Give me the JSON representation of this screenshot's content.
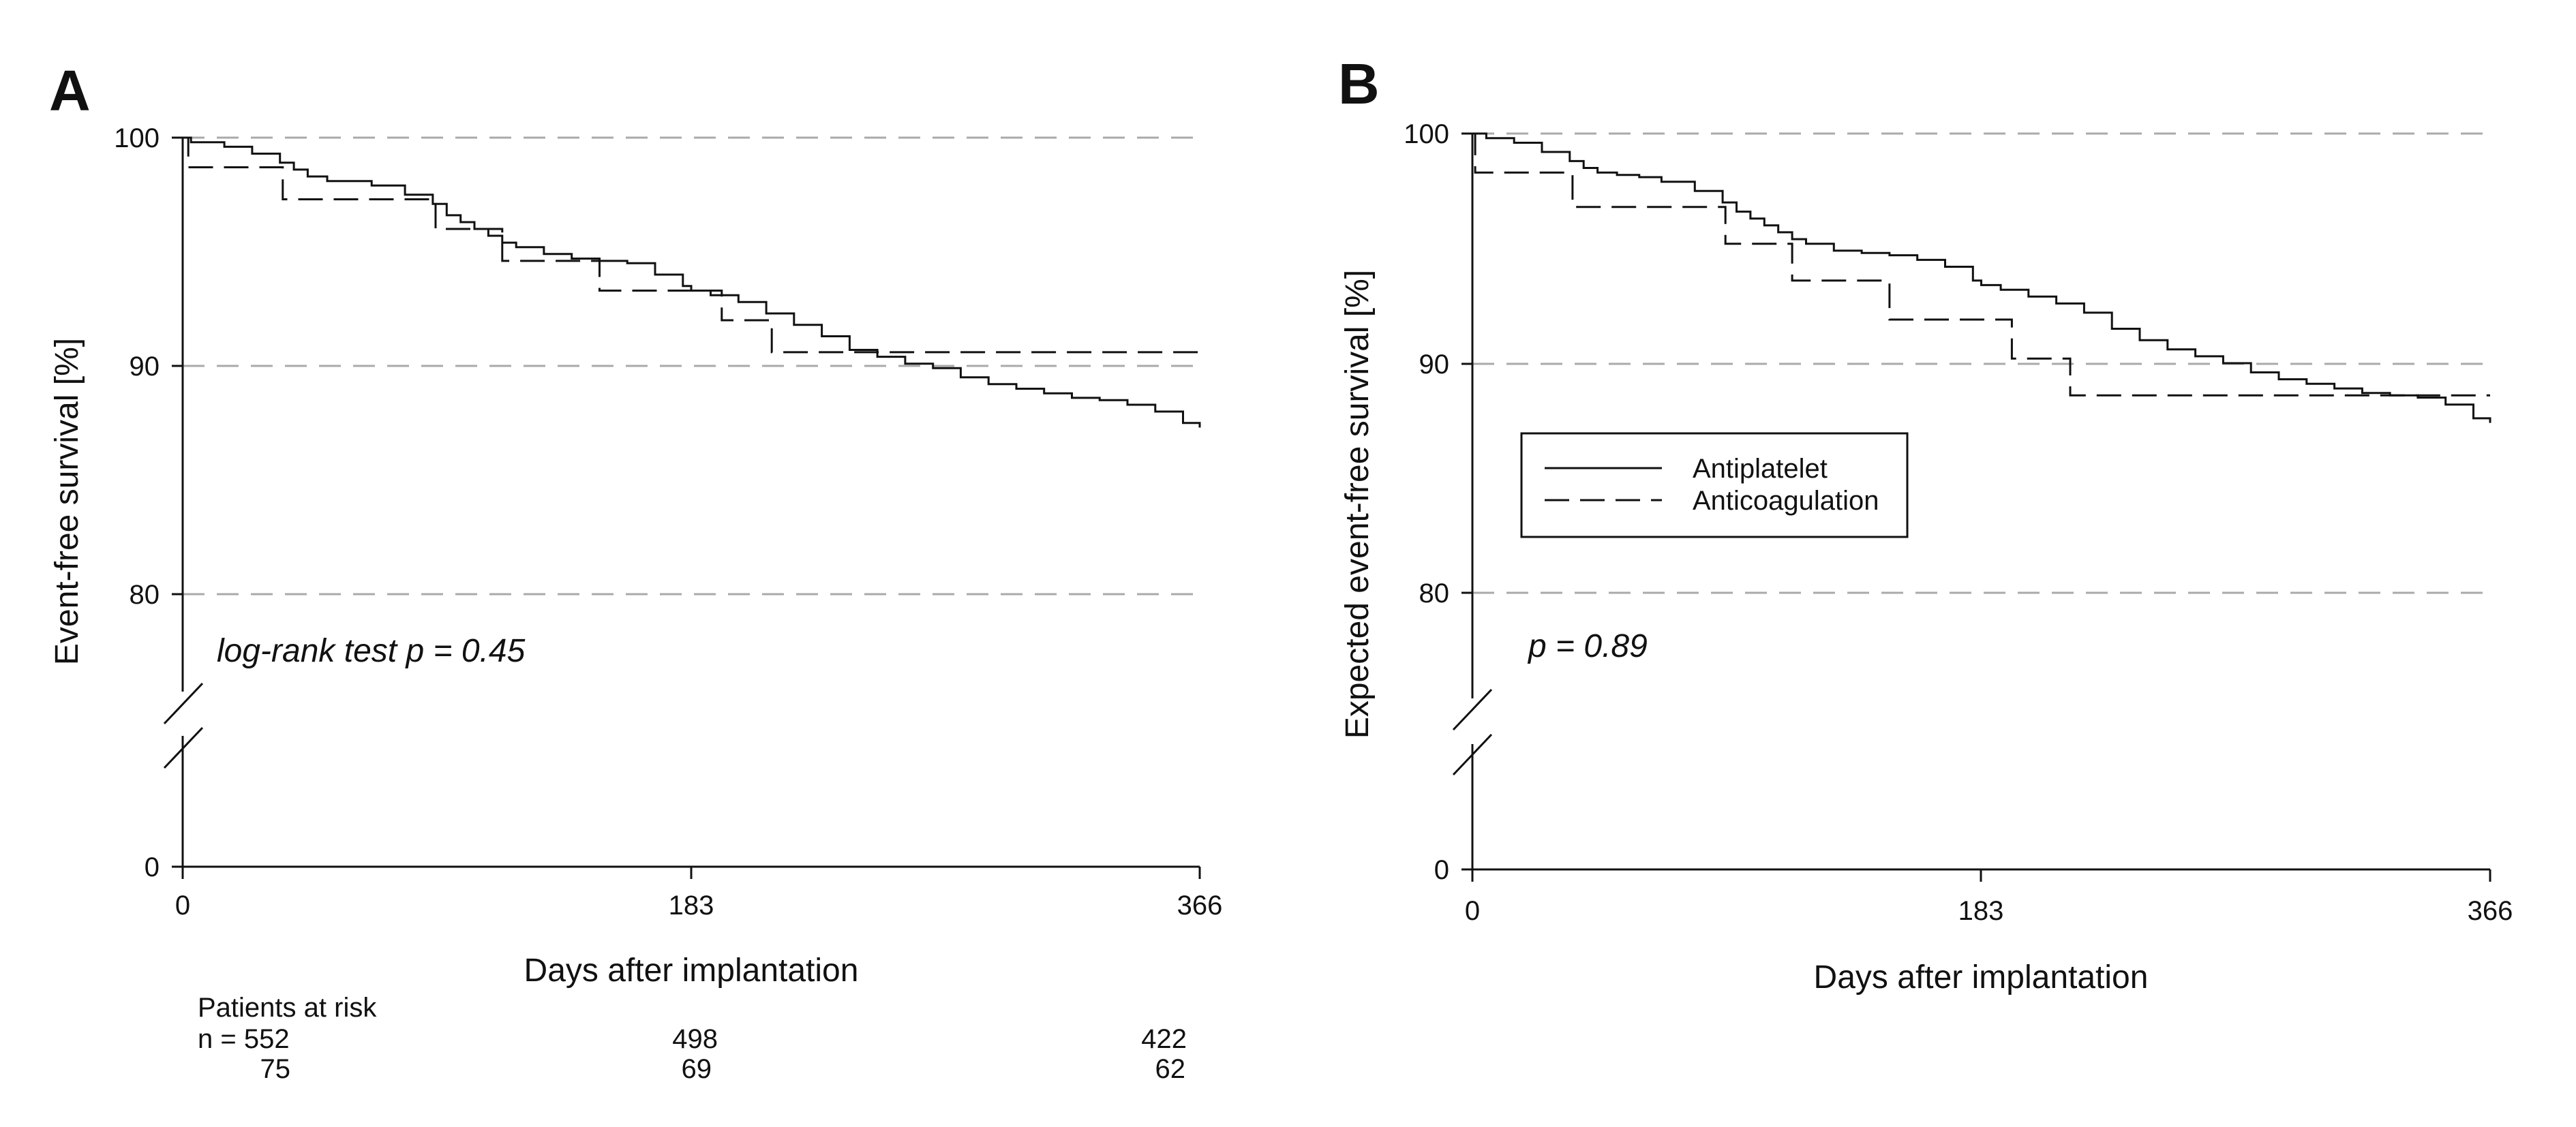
{
  "figure": {
    "panels": [
      {
        "letter": "A",
        "ylabel": "Event-free survival [%]",
        "xlabel": "Days after implantation",
        "annotation": "log-rank test p = 0.45",
        "yticks_upper": [
          "80",
          "90",
          "100"
        ],
        "ytick_zero": "0",
        "xticks": [
          "0",
          "183",
          "366"
        ],
        "risk_table": {
          "title": "Patients at risk",
          "rows": [
            {
              "values": [
                "n = 552",
                "498",
                "422"
              ]
            },
            {
              "values": [
                "75",
                "69",
                "62"
              ]
            }
          ]
        }
      },
      {
        "letter": "B",
        "ylabel": "Expected event-free survival [%]",
        "xlabel": "Days after implantation",
        "annotation": "p = 0.89",
        "yticks_upper": [
          "80",
          "90",
          "100"
        ],
        "ytick_zero": "0",
        "xticks": [
          "0",
          "183",
          "366"
        ],
        "legend": {
          "items": [
            {
              "label": "Antiplatelet",
              "dash": "solid"
            },
            {
              "label": "Anticoagulation",
              "dash": "dashed"
            }
          ]
        }
      }
    ]
  },
  "chart_data": [
    {
      "type": "line",
      "panel": "A",
      "title": "",
      "xlabel": "Days after implantation",
      "ylabel": "Event-free survival [%]",
      "xlim": [
        0,
        366
      ],
      "ylim": [
        80,
        100
      ],
      "y_axis_break": {
        "from": 0,
        "to": 80
      },
      "xticks": [
        0,
        183,
        366
      ],
      "yticks": [
        0,
        80,
        90,
        100
      ],
      "grid": "horizontal dashed at 80, 90, 100",
      "step": true,
      "series": [
        {
          "name": "Antiplatelet",
          "dash": "solid",
          "x": [
            0,
            3,
            15,
            25,
            35,
            40,
            45,
            52,
            60,
            68,
            80,
            90,
            95,
            100,
            105,
            110,
            115,
            120,
            130,
            140,
            150,
            160,
            170,
            180,
            183,
            190,
            200,
            210,
            220,
            230,
            240,
            250,
            260,
            270,
            280,
            290,
            300,
            310,
            320,
            330,
            340,
            350,
            360,
            366
          ],
          "y": [
            100,
            99.8,
            99.6,
            99.3,
            98.9,
            98.6,
            98.3,
            98.1,
            98.1,
            97.9,
            97.5,
            97.1,
            96.6,
            96.3,
            96.0,
            95.7,
            95.4,
            95.2,
            94.9,
            94.7,
            94.6,
            94.5,
            94.0,
            93.5,
            93.3,
            93.1,
            92.8,
            92.3,
            91.8,
            91.3,
            90.7,
            90.4,
            90.1,
            89.9,
            89.5,
            89.2,
            89.0,
            88.8,
            88.6,
            88.5,
            88.3,
            88.0,
            87.5,
            87.3
          ]
        },
        {
          "name": "Anticoagulation",
          "dash": "dashed",
          "x": [
            0,
            2,
            36,
            91,
            115,
            150,
            194,
            212,
            366
          ],
          "y": [
            100,
            98.7,
            97.3,
            96.0,
            94.6,
            93.3,
            92.0,
            90.6,
            90.6
          ]
        }
      ]
    },
    {
      "type": "line",
      "panel": "B",
      "title": "",
      "xlabel": "Days after implantation",
      "ylabel": "Expected event-free survival [%]",
      "xlim": [
        0,
        366
      ],
      "ylim": [
        80,
        100
      ],
      "y_axis_break": {
        "from": 0,
        "to": 80
      },
      "xticks": [
        0,
        183,
        366
      ],
      "yticks": [
        0,
        80,
        90,
        100
      ],
      "grid": "horizontal dashed at 80, 90, 100",
      "legend": "center-left",
      "step": true,
      "series": [
        {
          "name": "Antiplatelet",
          "dash": "solid",
          "x": [
            0,
            5,
            15,
            25,
            35,
            40,
            45,
            52,
            60,
            68,
            80,
            90,
            95,
            100,
            105,
            110,
            115,
            120,
            130,
            140,
            150,
            160,
            170,
            180,
            183,
            190,
            200,
            210,
            220,
            230,
            240,
            250,
            260,
            270,
            280,
            290,
            300,
            310,
            320,
            330,
            340,
            350,
            360,
            366
          ],
          "y": [
            100,
            99.8,
            99.6,
            99.2,
            98.8,
            98.5,
            98.3,
            98.2,
            98.1,
            97.9,
            97.5,
            97.0,
            96.6,
            96.3,
            96.0,
            95.7,
            95.4,
            95.2,
            94.9,
            94.8,
            94.7,
            94.5,
            94.2,
            93.6,
            93.4,
            93.2,
            92.9,
            92.6,
            92.2,
            91.5,
            91.0,
            90.6,
            90.3,
            90.0,
            89.6,
            89.3,
            89.1,
            88.9,
            88.7,
            88.6,
            88.5,
            88.2,
            87.6,
            87.4
          ]
        },
        {
          "name": "Anticoagulation",
          "dash": "dashed",
          "x": [
            0,
            1,
            36,
            91,
            115,
            150,
            194,
            215,
            366
          ],
          "y": [
            100,
            98.3,
            96.8,
            95.2,
            93.6,
            91.9,
            90.2,
            88.6,
            88.6
          ]
        }
      ]
    }
  ]
}
